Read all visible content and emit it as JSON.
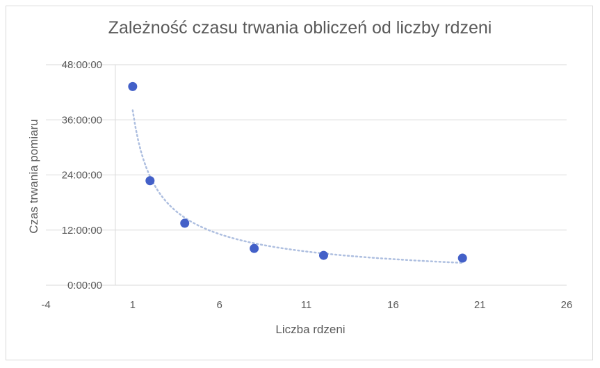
{
  "chart_data": {
    "type": "scatter",
    "title": "Zależność czasu trwania obliczeń od liczby rdzeni",
    "xlabel": "Liczba rdzeni",
    "ylabel": "Czas trwania pomiaru",
    "xlim": [
      -4,
      26
    ],
    "x_ticks": [
      -4,
      1,
      6,
      11,
      16,
      21,
      26
    ],
    "ylim": [
      0,
      48
    ],
    "y_unit": "hours",
    "y_ticks": [
      0,
      12,
      24,
      36,
      48
    ],
    "y_tick_labels": [
      "0:00:00",
      "12:00:00",
      "24:00:00",
      "36:00:00",
      "48:00:00"
    ],
    "points": [
      {
        "x": 1,
        "y": 43.25
      },
      {
        "x": 2,
        "y": 22.75
      },
      {
        "x": 4,
        "y": 13.5
      },
      {
        "x": 8,
        "y": 8.0
      },
      {
        "x": 12,
        "y": 6.5
      },
      {
        "x": 20,
        "y": 5.9
      }
    ],
    "trendline": {
      "type": "power",
      "style": "dotted",
      "x_range": [
        1,
        20
      ]
    },
    "grid": true,
    "legend": "none",
    "colors": {
      "marker": "#4360c8",
      "trendline": "#aebfe0",
      "grid": "#d9d9d9",
      "text": "#595959"
    }
  }
}
